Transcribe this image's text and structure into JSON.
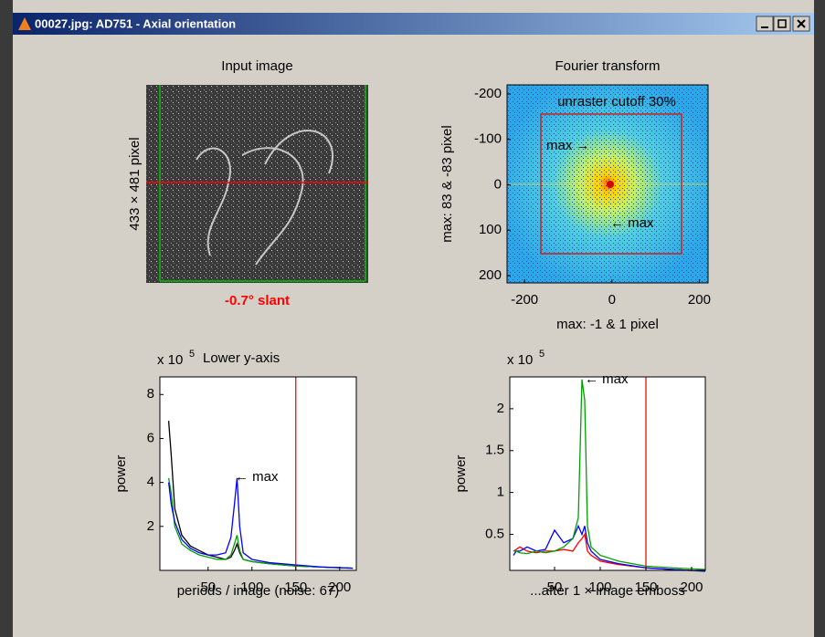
{
  "window": {
    "title": "00027.jpg: AD751 - Axial orientation"
  },
  "chart_data": [
    {
      "type": "image",
      "title": "Input image",
      "ylabel": "433 × 481 pixel",
      "xlabel": "-0.7° slant"
    },
    {
      "type": "image",
      "title": "Fourier transform",
      "ylabel": "max: 83 & -83 pixel",
      "xlabel": "max: -1 & 1 pixel",
      "annotations": [
        "unraster cutoff 30%",
        "max →",
        "← max"
      ],
      "xlim": [
        -240,
        220
      ],
      "xticks": [
        -200,
        0,
        200
      ],
      "ylim": [
        -220,
        216
      ],
      "yticks": [
        -200,
        -100,
        0,
        100,
        200
      ],
      "y_reversed": true
    },
    {
      "type": "line",
      "multiplier": "x 10",
      "exponent": "5",
      "title": "Lower y-axis",
      "ylabel": "power",
      "xlabel": "periods / image (noise: 67)",
      "annotations": [
        "← max"
      ],
      "xlim": [
        -5,
        219
      ],
      "xticks": [
        50,
        100,
        150,
        200
      ],
      "ylim": [
        0,
        8.8
      ],
      "yticks": [
        2,
        4,
        6,
        8
      ],
      "cutoff": 150,
      "x": [
        5,
        8,
        12,
        20,
        30,
        40,
        50,
        60,
        70,
        76,
        80,
        83,
        86,
        90,
        100,
        120,
        150,
        180,
        215
      ],
      "series": [
        {
          "color": "#000000",
          "values": [
            6.8,
            5.2,
            2.8,
            1.6,
            1.1,
            0.9,
            0.7,
            0.6,
            0.5,
            0.6,
            0.9,
            1.2,
            0.8,
            0.5,
            0.4,
            0.3,
            0.2,
            0.15,
            0.1
          ]
        },
        {
          "color": "#00a000",
          "values": [
            4.2,
            3.5,
            2.0,
            1.2,
            0.9,
            0.7,
            0.6,
            0.5,
            0.5,
            0.7,
            1.2,
            1.6,
            0.9,
            0.5,
            0.4,
            0.3,
            0.2,
            0.15,
            0.1
          ]
        },
        {
          "color": "#0000ff",
          "values": [
            4.0,
            3.0,
            2.2,
            1.4,
            1.0,
            0.8,
            0.7,
            0.7,
            0.8,
            1.5,
            3.0,
            4.2,
            2.0,
            0.8,
            0.5,
            0.35,
            0.25,
            0.15,
            0.1
          ]
        }
      ]
    },
    {
      "type": "line",
      "multiplier": "x 10",
      "exponent": "5",
      "ylabel": "power",
      "xlabel": "...after 1 × image emboss",
      "annotations": [
        "← max"
      ],
      "xlim": [
        1,
        215
      ],
      "xticks": [
        50,
        100,
        150,
        200
      ],
      "ylim": [
        0.07,
        2.38
      ],
      "yticks": [
        0.5,
        1,
        1.5,
        2
      ],
      "cutoff": 150,
      "x": [
        5,
        8,
        12,
        20,
        30,
        40,
        50,
        60,
        70,
        76,
        80,
        83,
        86,
        90,
        100,
        120,
        150,
        180,
        215
      ],
      "series": [
        {
          "color": "#ff0000",
          "values": [
            0.3,
            0.32,
            0.35,
            0.3,
            0.28,
            0.3,
            0.3,
            0.32,
            0.3,
            0.4,
            0.45,
            0.5,
            0.3,
            0.25,
            0.18,
            0.14,
            0.1,
            0.08,
            0.06
          ]
        },
        {
          "color": "#0000ff",
          "values": [
            0.25,
            0.3,
            0.3,
            0.35,
            0.3,
            0.32,
            0.55,
            0.4,
            0.45,
            0.6,
            0.5,
            0.6,
            0.4,
            0.3,
            0.2,
            0.15,
            0.1,
            0.08,
            0.06
          ]
        },
        {
          "color": "#00a000",
          "values": [
            0.3,
            0.3,
            0.28,
            0.27,
            0.3,
            0.28,
            0.3,
            0.35,
            0.45,
            0.7,
            2.35,
            2.1,
            0.6,
            0.35,
            0.25,
            0.18,
            0.12,
            0.1,
            0.08
          ]
        }
      ]
    }
  ]
}
